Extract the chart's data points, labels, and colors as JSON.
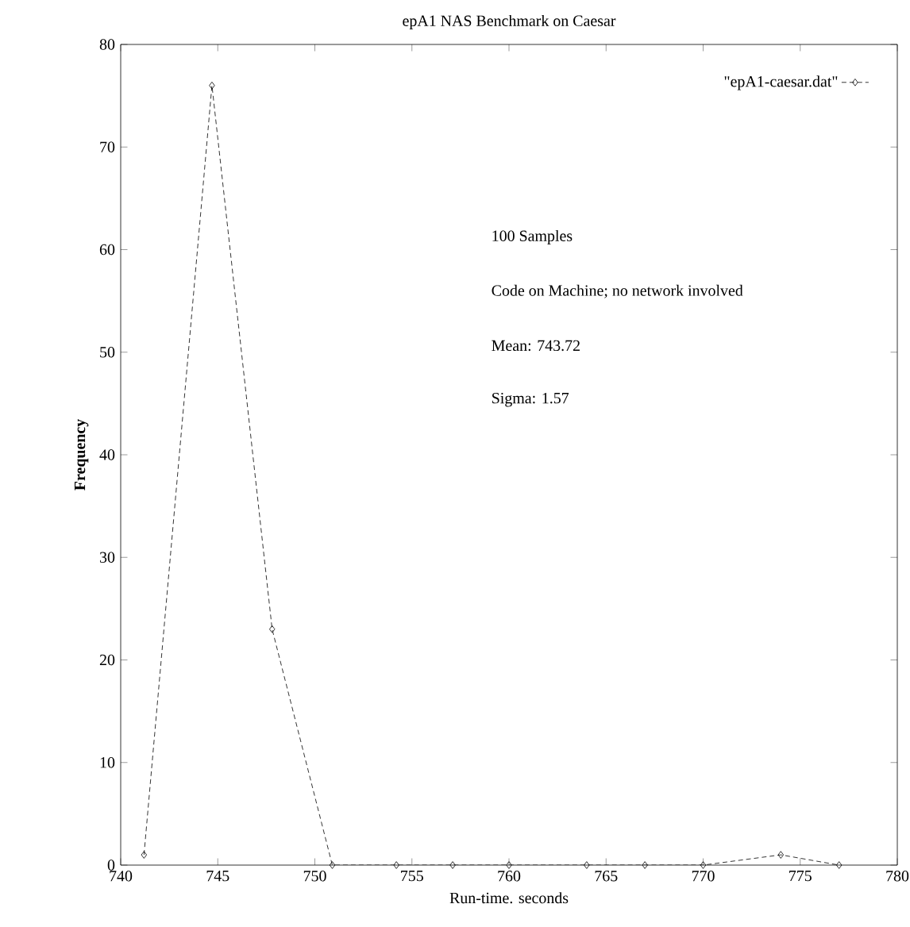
{
  "chart_data": {
    "type": "line",
    "title": "epA1 NAS Benchmark on Caesar",
    "xlabel": "Run-time. seconds",
    "ylabel": "Frequency",
    "annotations": [
      "100 Samples",
      "Code on Machine; no network involved",
      "Mean:  743.72",
      "Sigma:  1.57"
    ],
    "x": [
      741.2,
      744.7,
      747.8,
      750.9,
      754.2,
      757.1,
      760,
      764,
      767,
      770,
      774,
      777
    ],
    "series": [
      {
        "name": "\"epA1-caesar.dat\"",
        "color": "#000000",
        "values": [
          1,
          76,
          23,
          0,
          0,
          0,
          0,
          0,
          0,
          0,
          1,
          0
        ]
      }
    ],
    "xlim": [
      740,
      780
    ],
    "ylim": [
      0,
      80
    ],
    "xticks": [
      740,
      745,
      750,
      755,
      760,
      765,
      770,
      775,
      780
    ],
    "yticks": [
      0,
      10,
      20,
      30,
      40,
      50,
      60,
      70,
      80
    ],
    "legend": "top right",
    "marker": "diamond",
    "line_style": "dashed",
    "grid": false
  }
}
